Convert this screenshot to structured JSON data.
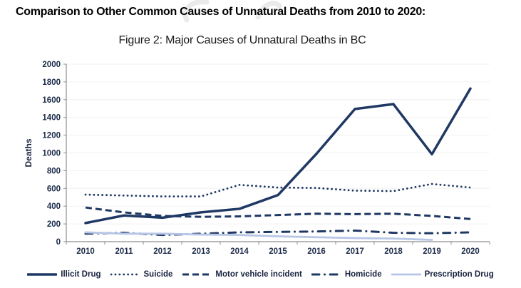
{
  "header": {
    "title": "Comparison to Other Common Causes of Unnatural Deaths from 2010 to 2020:"
  },
  "figure": {
    "caption": "Figure 2: Major Causes of Unnatural Deaths in BC"
  },
  "chart_data": {
    "type": "line",
    "categories": [
      "2010",
      "2011",
      "2012",
      "2013",
      "2014",
      "2015",
      "2016",
      "2017",
      "2018",
      "2019",
      "2020"
    ],
    "title": "Figure 2: Major Causes of Unnatural Deaths in BC",
    "xlabel": "",
    "ylabel": "Deaths",
    "ylim": [
      0,
      2000
    ],
    "ytick_step": 200,
    "grid": true,
    "legend_position": "bottom",
    "series": [
      {
        "name": "Illicit Drug",
        "style": "solid",
        "color": "#1f3864",
        "width": 3.5,
        "values": [
          210,
          295,
          270,
          330,
          370,
          525,
          990,
          1495,
          1550,
          985,
          1725
        ]
      },
      {
        "name": "Suicide",
        "style": "dotted",
        "color": "#1f3864",
        "width": 2.8,
        "values": [
          530,
          520,
          510,
          510,
          640,
          610,
          605,
          575,
          570,
          650,
          610
        ]
      },
      {
        "name": "Motor vehicle incident",
        "style": "dashed",
        "color": "#1f3864",
        "width": 3,
        "values": [
          385,
          330,
          290,
          280,
          285,
          300,
          315,
          310,
          315,
          290,
          255
        ]
      },
      {
        "name": "Homicide",
        "style": "dashdot",
        "color": "#1f3864",
        "width": 3,
        "values": [
          90,
          100,
          75,
          90,
          105,
          110,
          115,
          125,
          100,
          95,
          105
        ]
      },
      {
        "name": "Prescription Drug",
        "style": "solid",
        "color": "#b7c6e5",
        "width": 2.8,
        "values": [
          105,
          90,
          90,
          80,
          75,
          60,
          50,
          40,
          35,
          20,
          null
        ]
      }
    ]
  },
  "colors": {
    "axis": "#8e8e8e",
    "gridline": "#f1f1f1",
    "tick_label": "#1c2b4a",
    "watermark": "#d9d9d9"
  }
}
